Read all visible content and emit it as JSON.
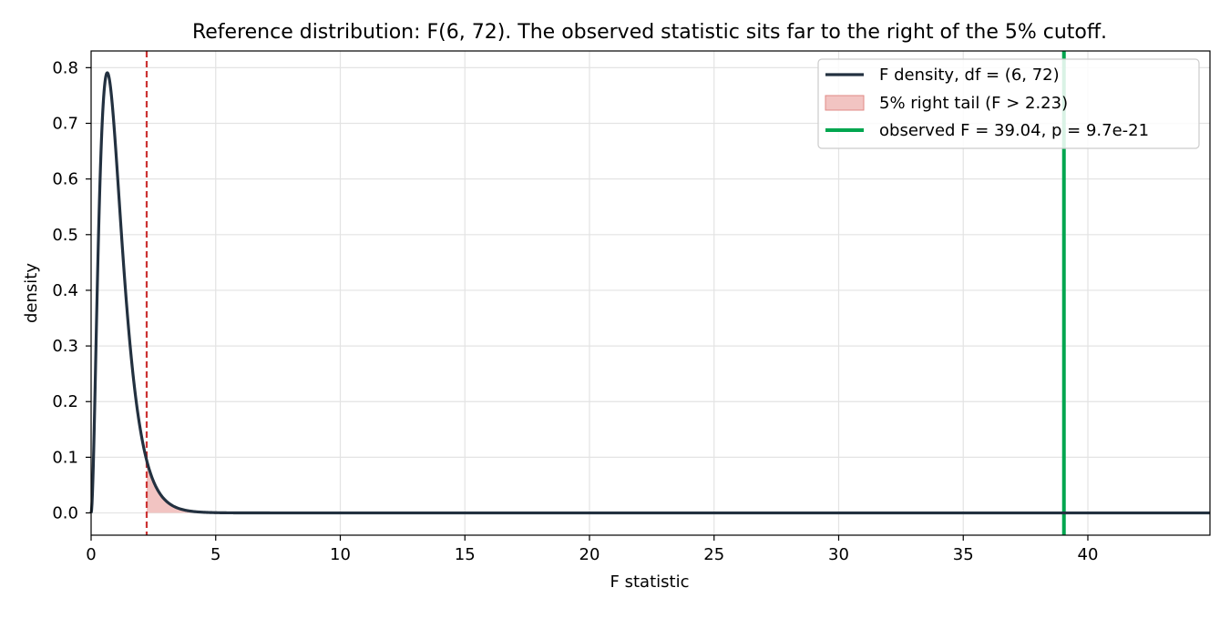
{
  "chart_data": {
    "type": "line",
    "title": "Reference distribution: F(6, 72). The observed statistic sits far to the right of the 5% cutoff.",
    "xlabel": "F statistic",
    "ylabel": "density",
    "xlim": [
      0,
      44.9
    ],
    "ylim": [
      -0.04,
      0.83
    ],
    "x_ticks": [
      0,
      5,
      10,
      15,
      20,
      25,
      30,
      35,
      40
    ],
    "y_ticks": [
      0.0,
      0.1,
      0.2,
      0.3,
      0.4,
      0.5,
      0.6,
      0.7,
      0.8
    ],
    "x_tick_labels": [
      "0",
      "5",
      "10",
      "15",
      "20",
      "25",
      "30",
      "35",
      "40"
    ],
    "y_tick_labels": [
      "0.0",
      "0.1",
      "0.2",
      "0.3",
      "0.4",
      "0.5",
      "0.6",
      "0.7",
      "0.8"
    ],
    "grid": true,
    "legend_position": "top-right",
    "df1": 6,
    "df2": 72,
    "series": [
      {
        "name": "F density, df = (6, 72)",
        "kind": "line",
        "color": "#233140",
        "x": [
          0,
          0.1,
          0.2,
          0.3,
          0.4,
          0.5,
          0.6,
          0.7,
          0.8,
          0.9,
          1.0,
          1.25,
          1.5,
          1.75,
          2.0,
          2.23,
          2.5,
          3.0,
          3.5,
          4.0,
          5.0,
          6.0,
          8.0,
          10.0,
          20.0,
          30.0,
          44.9
        ],
        "y": [
          0.0,
          0.175,
          0.435,
          0.634,
          0.744,
          0.785,
          0.781,
          0.75,
          0.703,
          0.647,
          0.588,
          0.448,
          0.327,
          0.232,
          0.162,
          0.117,
          0.079,
          0.038,
          0.018,
          0.008,
          0.0017,
          0.0004,
          0.0,
          0.0,
          0.0,
          0.0,
          0.0
        ]
      },
      {
        "name": "5% right tail (F > 2.23)",
        "kind": "area",
        "color": "#f2c4c2",
        "edge_color": "#e08a86",
        "from_x": 2.23
      },
      {
        "name": "observed F = 39.04, p = 9.7e-21",
        "kind": "vline",
        "color": "#00a64f",
        "x": 39.04
      }
    ],
    "critical_value": {
      "x": 2.23,
      "color": "#cc3333",
      "style": "dashed"
    }
  }
}
